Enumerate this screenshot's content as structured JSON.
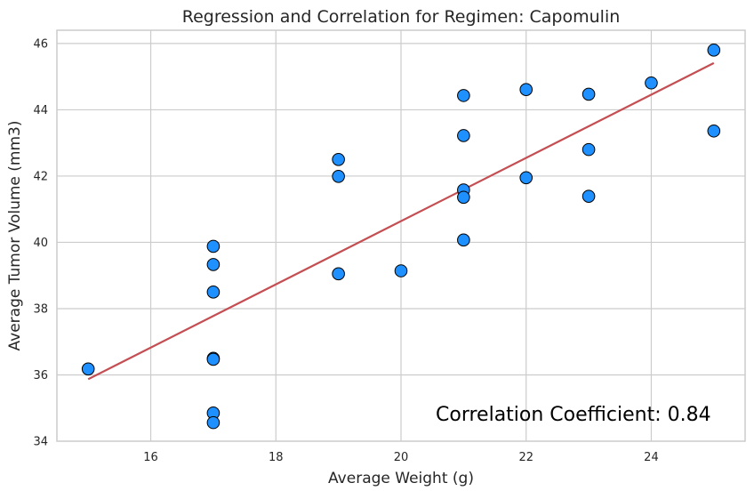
{
  "chart_data": {
    "type": "scatter",
    "title": "Regression and Correlation for Regimen: Capomulin",
    "xlabel": "Average Weight (g)",
    "ylabel": "Average Tumor Volume (mm3)",
    "xlim": [
      14.5,
      25.5
    ],
    "ylim": [
      34,
      46.4
    ],
    "xticks": [
      16,
      18,
      20,
      22,
      24
    ],
    "yticks": [
      34,
      36,
      38,
      40,
      42,
      44,
      46
    ],
    "grid": true,
    "point_color": "#1e90ff",
    "point_edge_color": "#000000",
    "line_color": "#c44e52",
    "points": [
      {
        "x": 15,
        "y": 36.18
      },
      {
        "x": 17,
        "y": 39.88
      },
      {
        "x": 17,
        "y": 39.33
      },
      {
        "x": 17,
        "y": 38.5
      },
      {
        "x": 17,
        "y": 36.5
      },
      {
        "x": 17,
        "y": 36.47
      },
      {
        "x": 17,
        "y": 34.85
      },
      {
        "x": 17,
        "y": 34.56
      },
      {
        "x": 19,
        "y": 42.5
      },
      {
        "x": 19,
        "y": 41.99
      },
      {
        "x": 19,
        "y": 39.05
      },
      {
        "x": 20,
        "y": 39.14
      },
      {
        "x": 21,
        "y": 44.43
      },
      {
        "x": 21,
        "y": 43.22
      },
      {
        "x": 21,
        "y": 41.58
      },
      {
        "x": 21,
        "y": 41.36
      },
      {
        "x": 21,
        "y": 40.07
      },
      {
        "x": 22,
        "y": 44.61
      },
      {
        "x": 22,
        "y": 41.95
      },
      {
        "x": 23,
        "y": 44.47
      },
      {
        "x": 23,
        "y": 42.8
      },
      {
        "x": 23,
        "y": 41.39
      },
      {
        "x": 24,
        "y": 44.81
      },
      {
        "x": 25,
        "y": 45.8
      },
      {
        "x": 25,
        "y": 43.36
      }
    ],
    "regression_line": {
      "x": [
        15,
        25
      ],
      "y": [
        35.87,
        45.41
      ]
    },
    "annotation": "Correlation Coefficient: 0.84"
  }
}
